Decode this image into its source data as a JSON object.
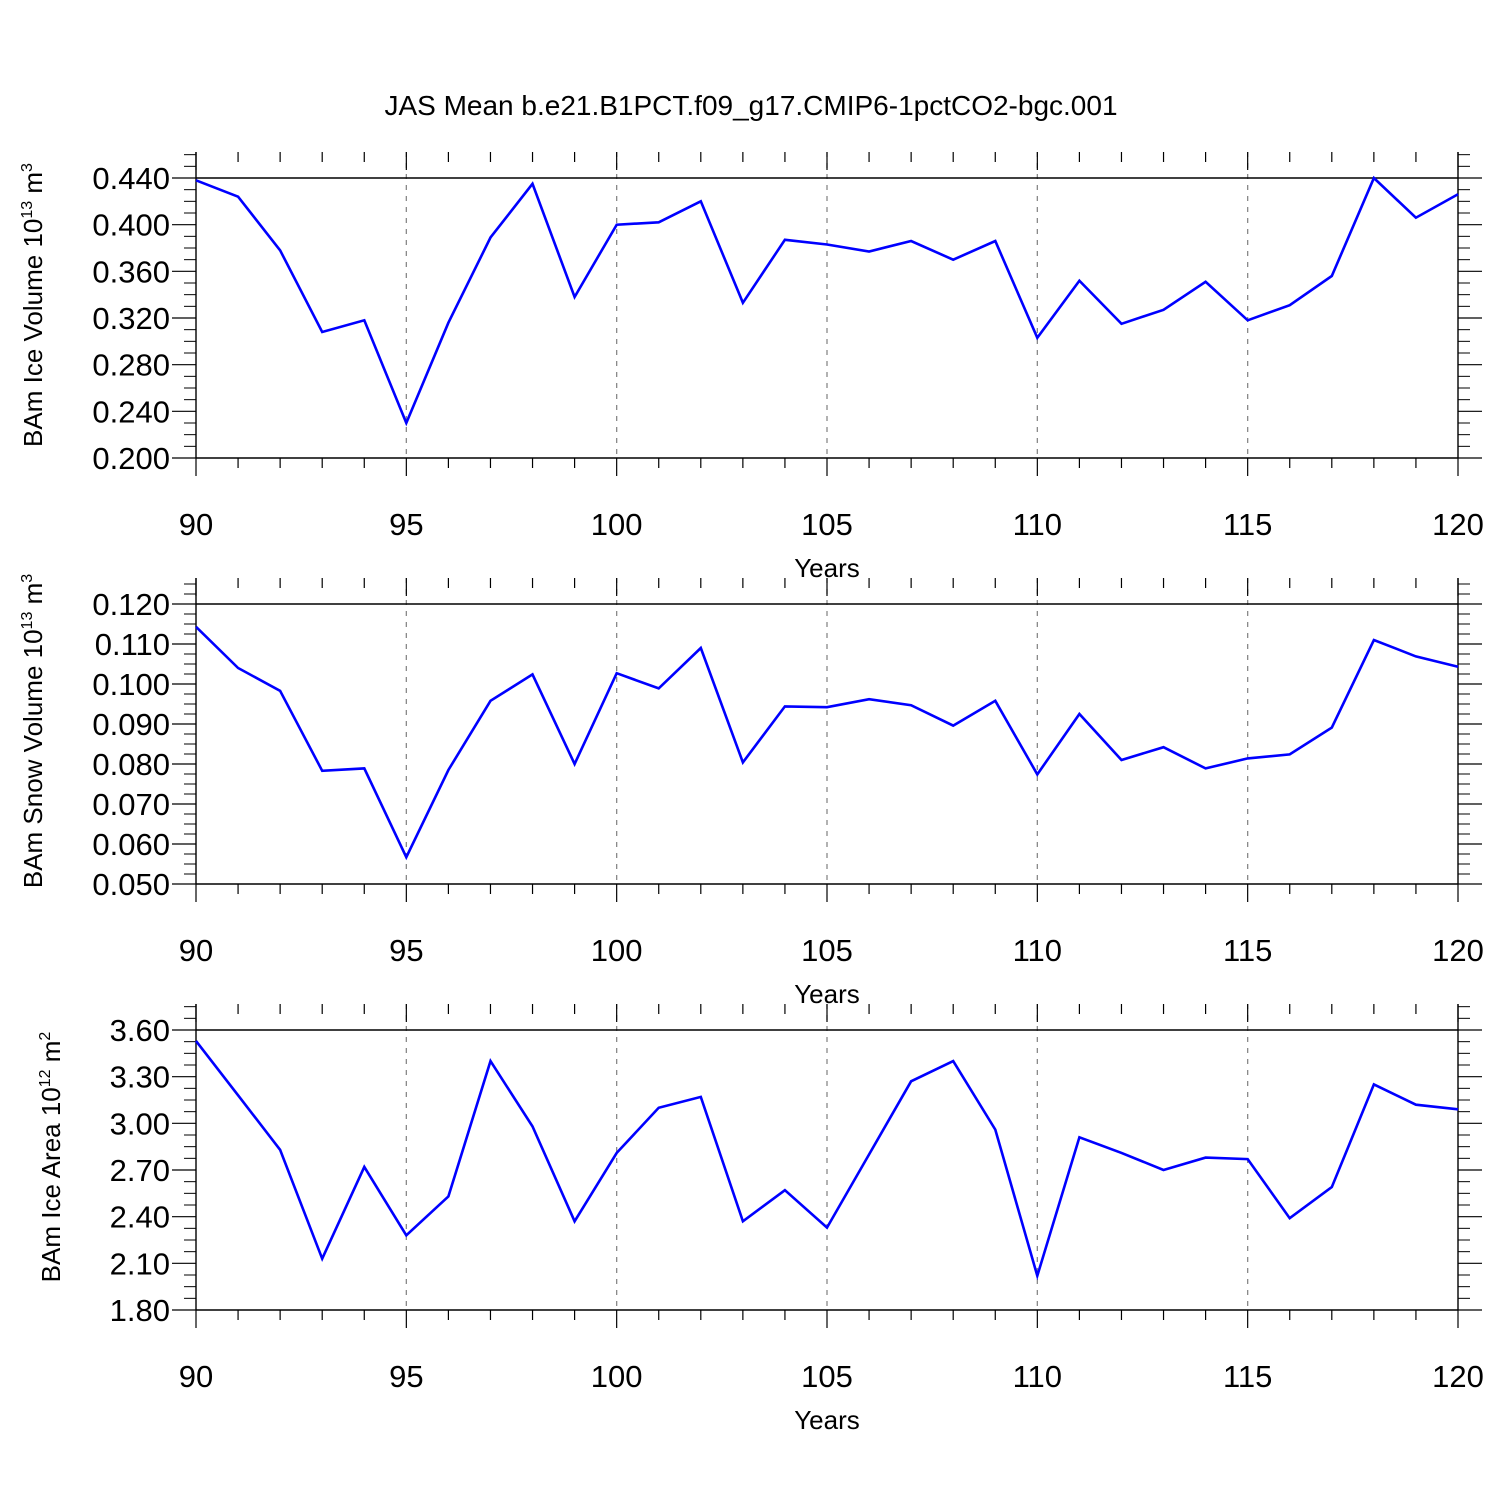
{
  "title": "JAS Mean b.e21.B1PCT.f09_g17.CMIP6-1pctCO2-bgc.001",
  "colors": {
    "line": "#0000ff",
    "axis": "#000000",
    "grid": "#888888"
  },
  "chart_data": [
    {
      "type": "line",
      "xlabel": "Years",
      "ylabel": "BAm Ice Volume 10",
      "ylabel_exp": "13",
      "ylabel_unit": " m",
      "ylabel_unit_exp": "3",
      "xlim": [
        90,
        120
      ],
      "ylim": [
        0.2,
        0.44
      ],
      "x_ticks": [
        90,
        95,
        100,
        105,
        110,
        115,
        120
      ],
      "x_tick_labels": [
        "90",
        "95",
        "100",
        "105",
        "110",
        "115",
        "120"
      ],
      "y_ticks": [
        0.2,
        0.24,
        0.28,
        0.32,
        0.36,
        0.4,
        0.44
      ],
      "y_tick_labels": [
        "0.200",
        "0.240",
        "0.280",
        "0.320",
        "0.360",
        "0.400",
        "0.440"
      ],
      "x": [
        90,
        91,
        92,
        93,
        94,
        95,
        96,
        97,
        98,
        99,
        100,
        101,
        102,
        103,
        104,
        105,
        106,
        107,
        108,
        109,
        110,
        111,
        112,
        113,
        114,
        115,
        116,
        117,
        118,
        119,
        120
      ],
      "values": [
        0.438,
        0.424,
        0.378,
        0.308,
        0.318,
        0.23,
        0.316,
        0.389,
        0.435,
        0.338,
        0.4,
        0.402,
        0.42,
        0.333,
        0.387,
        0.383,
        0.377,
        0.386,
        0.37,
        0.386,
        0.303,
        0.352,
        0.315,
        0.327,
        0.351,
        0.318,
        0.331,
        0.356,
        0.44,
        0.406,
        0.426
      ],
      "grid": "vertical dashed at major x ticks"
    },
    {
      "type": "line",
      "xlabel": "Years",
      "ylabel": "BAm Snow Volume 10",
      "ylabel_exp": "13",
      "ylabel_unit": " m",
      "ylabel_unit_exp": "3",
      "xlim": [
        90,
        120
      ],
      "ylim": [
        0.05,
        0.12
      ],
      "x_ticks": [
        90,
        95,
        100,
        105,
        110,
        115,
        120
      ],
      "x_tick_labels": [
        "90",
        "95",
        "100",
        "105",
        "110",
        "115",
        "120"
      ],
      "y_ticks": [
        0.05,
        0.06,
        0.07,
        0.08,
        0.09,
        0.1,
        0.11,
        0.12
      ],
      "y_tick_labels": [
        "0.050",
        "0.060",
        "0.070",
        "0.080",
        "0.090",
        "0.100",
        "0.110",
        "0.120"
      ],
      "x": [
        90,
        91,
        92,
        93,
        94,
        95,
        96,
        97,
        98,
        99,
        100,
        101,
        102,
        103,
        104,
        105,
        106,
        107,
        108,
        109,
        110,
        111,
        112,
        113,
        114,
        115,
        116,
        117,
        118,
        119,
        120
      ],
      "values": [
        0.1143,
        0.104,
        0.0983,
        0.0783,
        0.0789,
        0.0567,
        0.0785,
        0.0958,
        0.1024,
        0.08,
        0.1027,
        0.0989,
        0.109,
        0.0804,
        0.0944,
        0.0942,
        0.0962,
        0.0947,
        0.0896,
        0.0958,
        0.0774,
        0.0925,
        0.081,
        0.0842,
        0.0789,
        0.0814,
        0.0824,
        0.0891,
        0.111,
        0.1069,
        0.1043
      ],
      "grid": "vertical dashed at major x ticks"
    },
    {
      "type": "line",
      "xlabel": "Years",
      "ylabel": "BAm Ice Area 10",
      "ylabel_exp": "12",
      "ylabel_unit": " m",
      "ylabel_unit_exp": "2",
      "xlim": [
        90,
        120
      ],
      "ylim": [
        1.8,
        3.6
      ],
      "x_ticks": [
        90,
        95,
        100,
        105,
        110,
        115,
        120
      ],
      "x_tick_labels": [
        "90",
        "95",
        "100",
        "105",
        "110",
        "115",
        "120"
      ],
      "y_ticks": [
        1.8,
        2.1,
        2.4,
        2.7,
        3.0,
        3.3,
        3.6
      ],
      "y_tick_labels": [
        "1.80",
        "2.10",
        "2.40",
        "2.70",
        "3.00",
        "3.30",
        "3.60"
      ],
      "x": [
        90,
        91,
        92,
        93,
        94,
        95,
        96,
        97,
        98,
        99,
        100,
        101,
        102,
        103,
        104,
        105,
        106,
        107,
        108,
        109,
        110,
        111,
        112,
        113,
        114,
        115,
        116,
        117,
        118,
        119,
        120
      ],
      "values": [
        3.53,
        3.18,
        2.83,
        2.13,
        2.72,
        2.28,
        2.53,
        3.4,
        2.98,
        2.37,
        2.81,
        3.1,
        3.17,
        2.37,
        2.57,
        2.33,
        2.8,
        3.27,
        3.4,
        2.96,
        2.02,
        2.91,
        2.81,
        2.7,
        2.78,
        2.77,
        2.39,
        2.59,
        3.25,
        3.12,
        3.09
      ],
      "grid": "vertical dashed at major x ticks"
    }
  ]
}
